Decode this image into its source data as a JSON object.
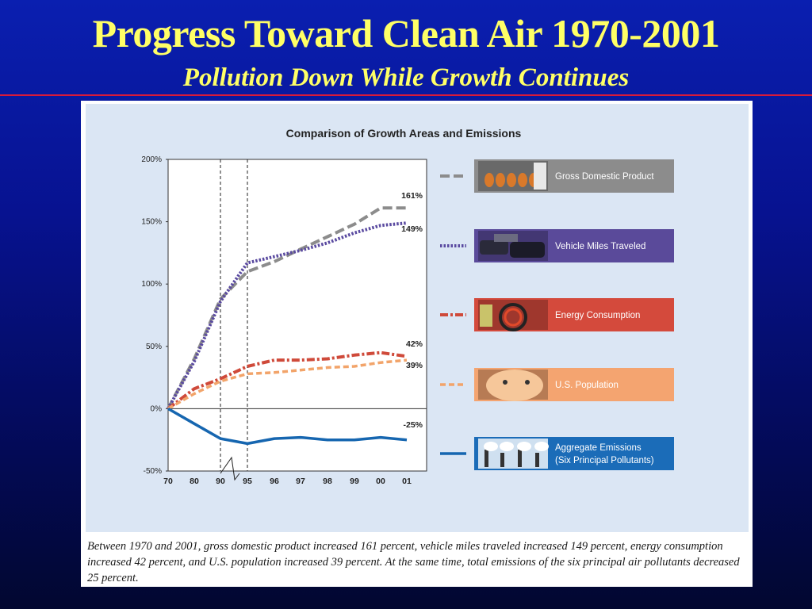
{
  "slide": {
    "title": "Progress Toward Clean Air 1970-2001",
    "subtitle": "Pollution Down While Growth Continues"
  },
  "caption": "Between 1970 and 2001, gross domestic product increased 161 percent, vehicle miles traveled increased 149 percent, energy consumption increased 42 percent, and U.S. population increased 39 percent. At the same time, total emissions of the six principal air pollutants decreased 25 percent.",
  "colors": {
    "background_top": "#0a1fb0",
    "title_text": "#ffff66",
    "rule": "#d81a3a"
  },
  "chart_data": {
    "type": "line",
    "title": "Comparison of Growth Areas and Emissions",
    "xlabel": "",
    "ylabel": "",
    "x": [
      "70",
      "80",
      "90",
      "95",
      "96",
      "97",
      "98",
      "99",
      "00",
      "01"
    ],
    "ylim": [
      -50,
      200
    ],
    "yticks": [
      "200%",
      "150%",
      "100%",
      "50%",
      "0%",
      "-50%"
    ],
    "grid": false,
    "axis_break": "between 90 and 95 on x-axis",
    "series": [
      {
        "name": "Gross Domestic Product",
        "color": "#8c8c8c",
        "dash": "dashed",
        "values": [
          0,
          40,
          88,
          110,
          118,
          128,
          138,
          148,
          161,
          161
        ],
        "end_label": "161%",
        "legend_bg": "#8c8c8c",
        "legend_icon": "gdp-photo-icon"
      },
      {
        "name": "Vehicle Miles Traveled",
        "color": "#5a4aa0",
        "dash": "dotted",
        "values": [
          0,
          38,
          86,
          117,
          122,
          127,
          133,
          141,
          147,
          149
        ],
        "end_label": "149%",
        "legend_bg": "#5a4a9a",
        "legend_icon": "traffic-photo-icon"
      },
      {
        "name": "Energy Consumption",
        "color": "#cf4a3a",
        "dash": "dash-dot",
        "values": [
          0,
          16,
          24,
          34,
          39,
          39,
          40,
          43,
          45,
          42
        ],
        "end_label": "42%",
        "legend_bg": "#d44a3c",
        "legend_icon": "stove-photo-icon"
      },
      {
        "name": "U.S. Population",
        "color": "#f2a46a",
        "dash": "short-dash",
        "values": [
          0,
          12,
          22,
          28,
          29,
          31,
          33,
          34,
          37,
          39
        ],
        "end_label": "39%",
        "legend_bg": "#f4a470",
        "legend_icon": "baby-photo-icon"
      },
      {
        "name": "Aggregate Emissions",
        "name_line2": "(Six Principal Pollutants)",
        "color": "#1666b0",
        "dash": "solid",
        "values": [
          0,
          -12,
          -24,
          -28,
          -24,
          -23,
          -25,
          -25,
          -23,
          -25
        ],
        "end_label": "-25%",
        "legend_bg": "#1b6cb8",
        "legend_icon": "smokestack-photo-icon"
      }
    ]
  }
}
